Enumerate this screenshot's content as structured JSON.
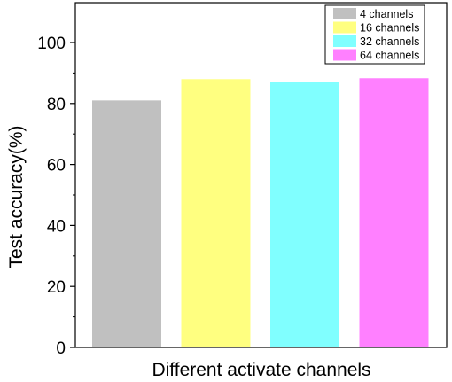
{
  "chart_data": {
    "type": "bar",
    "categories": [
      "4 channels",
      "16 channels",
      "32 channels",
      "64 channels"
    ],
    "values": [
      81,
      88,
      87,
      88.3
    ],
    "colors": [
      "#c0c0c0",
      "#ffff80",
      "#80ffff",
      "#ff80ff"
    ],
    "title": "",
    "xlabel": "Different activate channels",
    "ylabel": "Test accuracy(%)",
    "ylim": [
      0,
      100
    ],
    "yticks": [
      0,
      20,
      40,
      60,
      80,
      100
    ],
    "grid": false,
    "legend": {
      "placement": "top-right",
      "entries": [
        "4 channels",
        "16 channels",
        "32 channels",
        "64 channels"
      ]
    }
  }
}
